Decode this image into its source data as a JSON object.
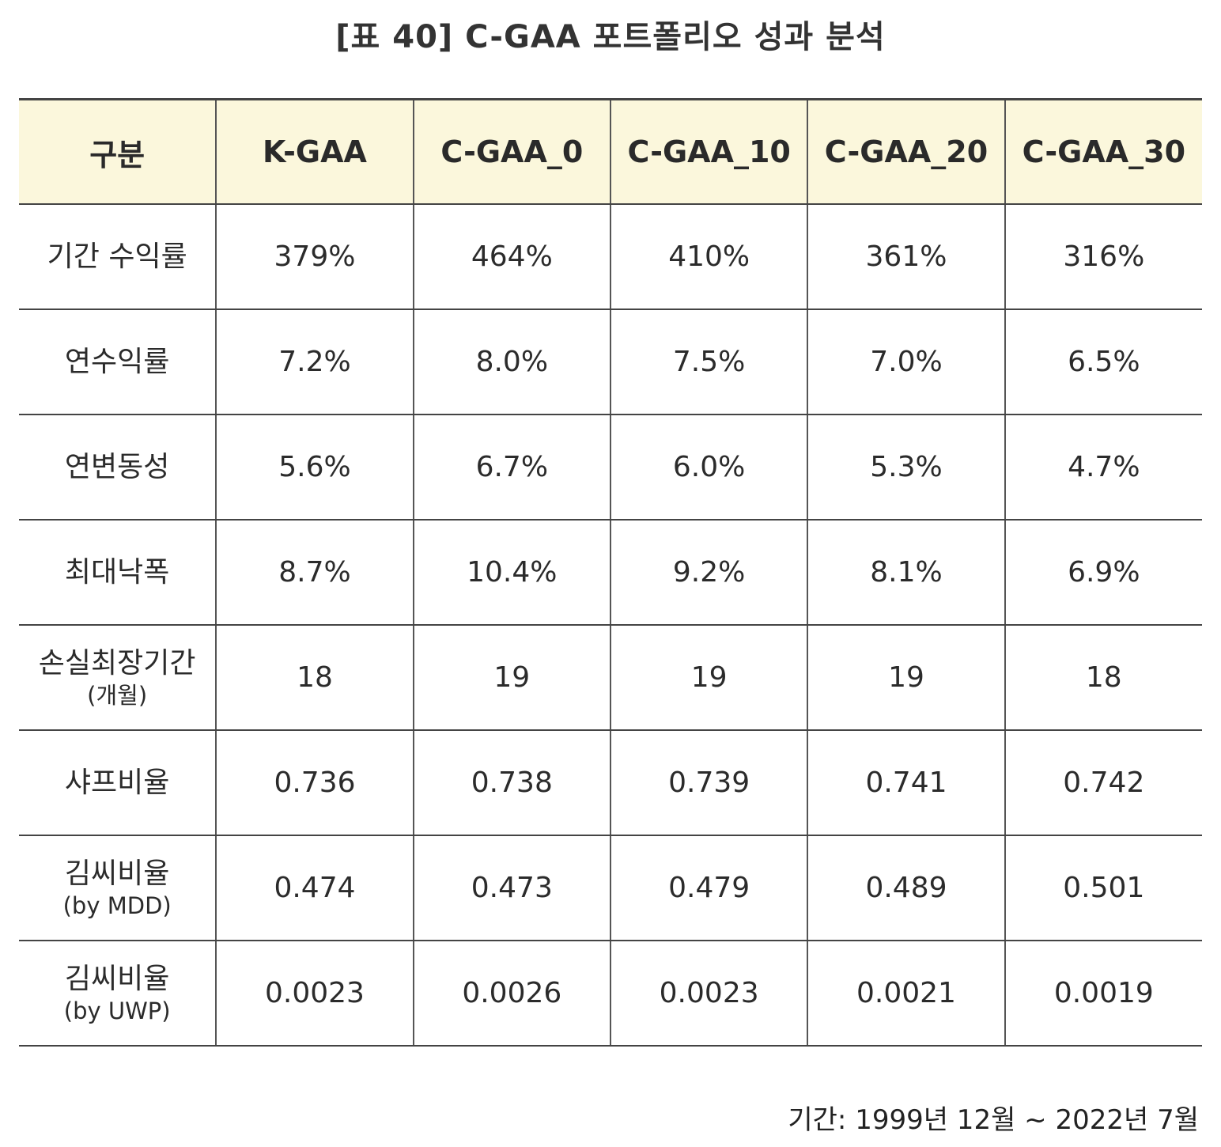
{
  "title": "[표 40] C-GAA 포트폴리오 성과 분석",
  "table": {
    "headers": [
      "구분",
      "K-GAA",
      "C-GAA_0",
      "C-GAA_10",
      "C-GAA_20",
      "C-GAA_30"
    ],
    "rows": [
      {
        "label": "기간 수익률",
        "sub": "",
        "values": [
          "379%",
          "464%",
          "410%",
          "361%",
          "316%"
        ]
      },
      {
        "label": "연수익률",
        "sub": "",
        "values": [
          "7.2%",
          "8.0%",
          "7.5%",
          "7.0%",
          "6.5%"
        ]
      },
      {
        "label": "연변동성",
        "sub": "",
        "values": [
          "5.6%",
          "6.7%",
          "6.0%",
          "5.3%",
          "4.7%"
        ]
      },
      {
        "label": "최대낙폭",
        "sub": "",
        "values": [
          "8.7%",
          "10.4%",
          "9.2%",
          "8.1%",
          "6.9%"
        ]
      },
      {
        "label": "손실최장기간",
        "sub": "(개월)",
        "values": [
          "18",
          "19",
          "19",
          "19",
          "18"
        ]
      },
      {
        "label": "샤프비율",
        "sub": "",
        "values": [
          "0.736",
          "0.738",
          "0.739",
          "0.741",
          "0.742"
        ]
      },
      {
        "label": "김씨비율",
        "sub": "(by MDD)",
        "values": [
          "0.474",
          "0.473",
          "0.479",
          "0.489",
          "0.501"
        ]
      },
      {
        "label": "김씨비율",
        "sub": "(by UWP)",
        "values": [
          "0.0023",
          "0.0026",
          "0.0023",
          "0.0021",
          "0.0019"
        ]
      }
    ]
  },
  "footnote": "기간: 1999년 12월 ~ 2022년 7월",
  "colors": {
    "header_bg": "#fbf7dc",
    "rule": "#444444",
    "text": "#222222"
  }
}
